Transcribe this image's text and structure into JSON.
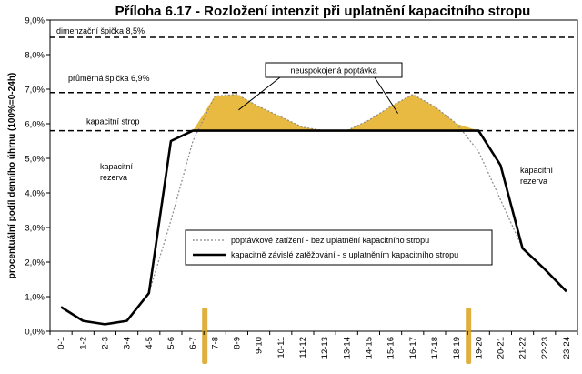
{
  "chart_data": {
    "type": "line",
    "title": "Příloha 6.17 - Rozložení intenzit při uplatnění kapacitního stropu",
    "ylabel": "procentuální podíl denního úhrnu (100%=0-24h)",
    "xlabel": "",
    "ylim": [
      0,
      9
    ],
    "yticks": [
      "0,0%",
      "1,0%",
      "2,0%",
      "3,0%",
      "4,0%",
      "5,0%",
      "6,0%",
      "7,0%",
      "8,0%",
      "9,0%"
    ],
    "categories": [
      "0-1",
      "1-2",
      "2-3",
      "3-4",
      "4-5",
      "5-6",
      "6-7",
      "7-8",
      "8-9",
      "9-10",
      "10-11",
      "11-12",
      "12-13",
      "13-14",
      "14-15",
      "15-16",
      "16-17",
      "17-18",
      "18-19",
      "19-20",
      "20-21",
      "21-22",
      "22-23",
      "23-24"
    ],
    "series": [
      {
        "name": "poptávkové zatížení - bez uplatnění kapacitního stropu",
        "style": "dotted",
        "values": [
          0.7,
          0.3,
          0.2,
          0.3,
          1.1,
          3.2,
          5.5,
          6.8,
          6.85,
          6.5,
          6.2,
          5.9,
          5.8,
          5.8,
          6.1,
          6.5,
          6.85,
          6.5,
          6.0,
          5.2,
          3.8,
          2.4,
          1.8,
          1.15
        ]
      },
      {
        "name": "kapacitně závislé zatěžování - s uplatněním kapacitního stropu",
        "style": "solid",
        "values": [
          0.7,
          0.3,
          0.2,
          0.3,
          1.1,
          5.5,
          5.8,
          5.8,
          5.8,
          5.8,
          5.8,
          5.8,
          5.8,
          5.8,
          5.8,
          5.8,
          5.8,
          5.8,
          5.8,
          5.8,
          4.8,
          2.4,
          1.8,
          1.15
        ]
      }
    ],
    "reference_lines": [
      {
        "value": 8.5,
        "label": "dimenzační špička 8,5%"
      },
      {
        "value": 6.9,
        "label": "průměrná špička 6,9%"
      },
      {
        "value": 5.8,
        "label": "kapacitní strop"
      }
    ],
    "annotations": {
      "unmet_demand": "neuspokojená poptávka",
      "reserve_left": [
        "kapacitní",
        "rezerva"
      ],
      "reserve_right": [
        "kapacitní",
        "rezerva"
      ]
    },
    "highlighted_categories": [
      "7-8",
      "19-20"
    ],
    "colors": {
      "unmet_fill": "#e7b22c",
      "line": "#000000",
      "demand_line": "#8a8a8a",
      "marker": "#d9a21e"
    },
    "grid": false,
    "legend_position": "center-right"
  }
}
